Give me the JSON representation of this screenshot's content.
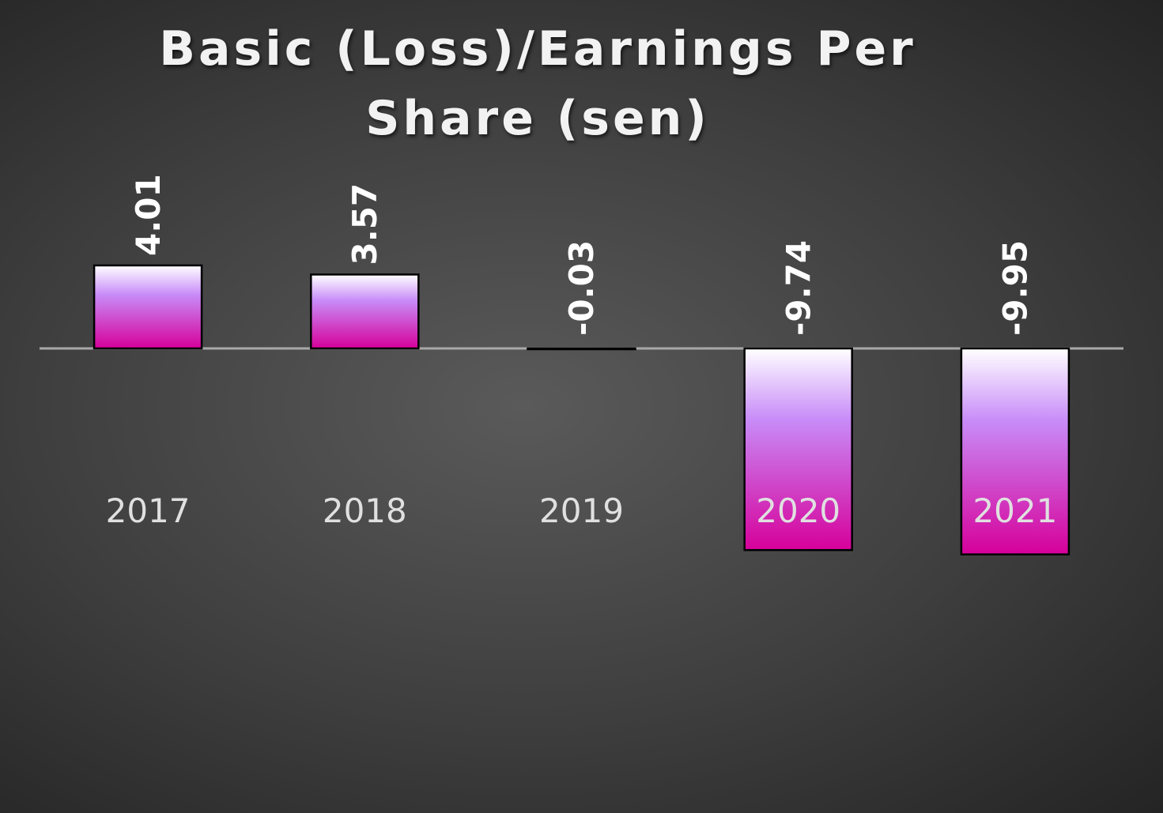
{
  "chart_data": {
    "type": "bar",
    "title": "Basic (Loss)/Earnings Per Share (sen)",
    "categories": [
      "2017",
      "2018",
      "2019",
      "2020",
      "2021"
    ],
    "values": [
      4.01,
      3.57,
      -0.03,
      -9.74,
      -9.95
    ],
    "color": "#d6009a"
  }
}
